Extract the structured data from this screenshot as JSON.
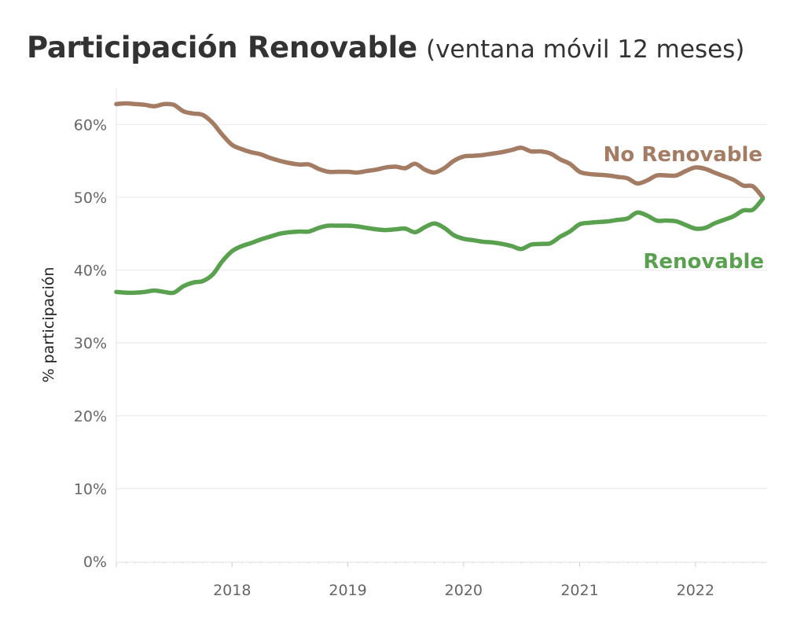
{
  "title": "Participación Renovable",
  "subtitle": "(ventana móvil 12 meses)",
  "chart_data": {
    "type": "line",
    "title": "Participación Renovable",
    "subtitle": "(ventana móvil 12 meses)",
    "xlabel": "",
    "ylabel": "% participación",
    "xlim": [
      "2017-01-01",
      "2022-08-15"
    ],
    "ylim": [
      0,
      65
    ],
    "y_ticks": [
      0,
      10,
      20,
      30,
      40,
      50,
      60
    ],
    "y_tick_labels": [
      "0%",
      "10%",
      "20%",
      "30%",
      "40%",
      "50%",
      "60%"
    ],
    "x_ticks": [
      "2018-01-01",
      "2019-01-01",
      "2020-01-01",
      "2021-01-01",
      "2022-01-01"
    ],
    "x_tick_labels": [
      "2018",
      "2019",
      "2020",
      "2021",
      "2022"
    ],
    "grid": "horizontal",
    "legend": "direct labels at line ends",
    "series": [
      {
        "name": "No Renovable",
        "color": "#a47b63",
        "x": [
          "2017-01-01",
          "2017-02-01",
          "2017-03-01",
          "2017-04-01",
          "2017-05-01",
          "2017-06-01",
          "2017-07-01",
          "2017-08-01",
          "2017-09-01",
          "2017-10-01",
          "2017-11-01",
          "2017-12-01",
          "2018-01-01",
          "2018-02-01",
          "2018-03-01",
          "2018-04-01",
          "2018-05-01",
          "2018-06-01",
          "2018-07-01",
          "2018-08-01",
          "2018-09-01",
          "2018-10-01",
          "2018-11-01",
          "2018-12-01",
          "2019-01-01",
          "2019-02-01",
          "2019-03-01",
          "2019-04-01",
          "2019-05-01",
          "2019-06-01",
          "2019-07-01",
          "2019-08-01",
          "2019-09-01",
          "2019-10-01",
          "2019-11-01",
          "2019-12-01",
          "2020-01-01",
          "2020-02-01",
          "2020-03-01",
          "2020-04-01",
          "2020-05-01",
          "2020-06-01",
          "2020-07-01",
          "2020-08-01",
          "2020-09-01",
          "2020-10-01",
          "2020-11-01",
          "2020-12-01",
          "2021-01-01",
          "2021-02-01",
          "2021-03-01",
          "2021-04-01",
          "2021-05-01",
          "2021-06-01",
          "2021-07-01",
          "2021-08-01",
          "2021-09-01",
          "2021-10-01",
          "2021-11-01",
          "2021-12-01",
          "2022-01-01",
          "2022-02-01",
          "2022-03-01",
          "2022-04-01",
          "2022-05-01",
          "2022-06-01",
          "2022-07-01",
          "2022-08-01"
        ],
        "values": [
          62.8,
          62.9,
          62.8,
          62.7,
          62.5,
          62.8,
          62.7,
          61.8,
          61.5,
          61.3,
          60.2,
          58.6,
          57.2,
          56.6,
          56.2,
          55.9,
          55.4,
          55.0,
          54.7,
          54.5,
          54.5,
          53.9,
          53.5,
          53.5,
          53.5,
          53.4,
          53.6,
          53.8,
          54.1,
          54.2,
          54.0,
          54.6,
          53.8,
          53.4,
          54.0,
          55.0,
          55.6,
          55.7,
          55.8,
          56.0,
          56.2,
          56.5,
          56.8,
          56.3,
          56.3,
          56.0,
          55.2,
          54.6,
          53.5,
          53.2,
          53.1,
          53.0,
          52.8,
          52.6,
          51.9,
          52.3,
          53.0,
          53.0,
          53.0,
          53.6,
          54.1,
          53.9,
          53.4,
          52.9,
          52.4,
          51.6,
          51.5,
          50.0
        ]
      },
      {
        "name": "Renovable",
        "color": "#59a14f",
        "x": [
          "2017-01-01",
          "2017-02-01",
          "2017-03-01",
          "2017-04-01",
          "2017-05-01",
          "2017-06-01",
          "2017-07-01",
          "2017-08-01",
          "2017-09-01",
          "2017-10-01",
          "2017-11-01",
          "2017-12-01",
          "2018-01-01",
          "2018-02-01",
          "2018-03-01",
          "2018-04-01",
          "2018-05-01",
          "2018-06-01",
          "2018-07-01",
          "2018-08-01",
          "2018-09-01",
          "2018-10-01",
          "2018-11-01",
          "2018-12-01",
          "2019-01-01",
          "2019-02-01",
          "2019-03-01",
          "2019-04-01",
          "2019-05-01",
          "2019-06-01",
          "2019-07-01",
          "2019-08-01",
          "2019-09-01",
          "2019-10-01",
          "2019-11-01",
          "2019-12-01",
          "2020-01-01",
          "2020-02-01",
          "2020-03-01",
          "2020-04-01",
          "2020-05-01",
          "2020-06-01",
          "2020-07-01",
          "2020-08-01",
          "2020-09-01",
          "2020-10-01",
          "2020-11-01",
          "2020-12-01",
          "2021-01-01",
          "2021-02-01",
          "2021-03-01",
          "2021-04-01",
          "2021-05-01",
          "2021-06-01",
          "2021-07-01",
          "2021-08-01",
          "2021-09-01",
          "2021-10-01",
          "2021-11-01",
          "2021-12-01",
          "2022-01-01",
          "2022-02-01",
          "2022-03-01",
          "2022-04-01",
          "2022-05-01",
          "2022-06-01",
          "2022-07-01",
          "2022-08-01"
        ],
        "values": [
          37.0,
          36.9,
          36.9,
          37.0,
          37.2,
          37.0,
          36.9,
          37.8,
          38.3,
          38.5,
          39.4,
          41.2,
          42.6,
          43.3,
          43.7,
          44.2,
          44.6,
          45.0,
          45.2,
          45.3,
          45.3,
          45.8,
          46.1,
          46.1,
          46.1,
          46.0,
          45.8,
          45.6,
          45.5,
          45.6,
          45.7,
          45.2,
          45.9,
          46.4,
          45.8,
          44.8,
          44.3,
          44.1,
          43.9,
          43.8,
          43.6,
          43.3,
          42.9,
          43.5,
          43.6,
          43.7,
          44.6,
          45.3,
          46.3,
          46.5,
          46.6,
          46.7,
          46.9,
          47.1,
          47.9,
          47.5,
          46.8,
          46.8,
          46.7,
          46.2,
          45.7,
          45.8,
          46.4,
          46.9,
          47.4,
          48.2,
          48.3,
          49.8
        ]
      }
    ]
  }
}
